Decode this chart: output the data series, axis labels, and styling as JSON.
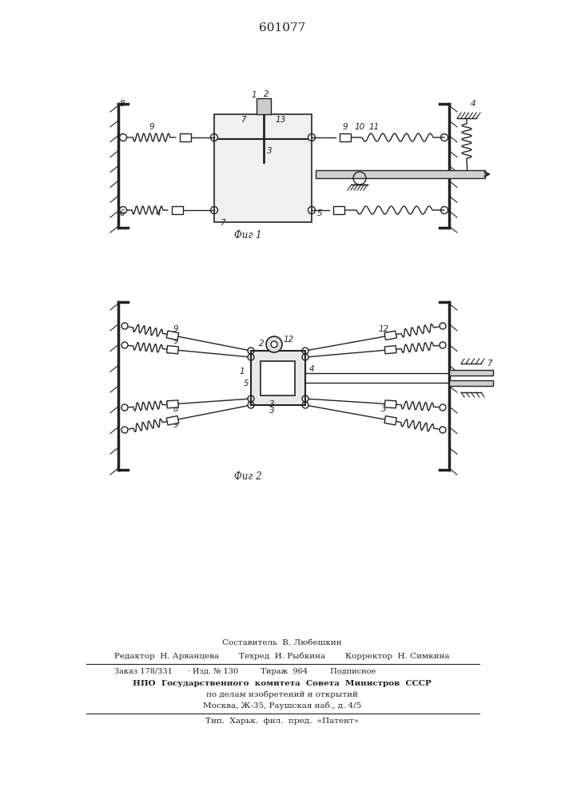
{
  "title": "601077",
  "fig1_caption": "Фиг 1",
  "fig2_caption": "Фиг 2",
  "footer_line1": "Составитель  В. Любешкин",
  "footer_line2_left": "Редактор  Н. Арванцева",
  "footer_line2_mid": "Техред  И. Рыбкина",
  "footer_line2_right": "Корректор  Н. Симкина",
  "footer_line3": "Заказ 178/331      · Изд. № 130         Тираж  964         Подписное",
  "footer_line4": "НПО  Государственного  комитета  Совета  Министров  СССР",
  "footer_line5": "по делам изобретений и открытий",
  "footer_line6": "Москва, Ж-35, Раушская наб., д. 4/5",
  "footer_line7": "Тип.  Харьк.  фил.  пред.  «Патент»",
  "bg_color": "#ffffff",
  "line_color": "#222222"
}
